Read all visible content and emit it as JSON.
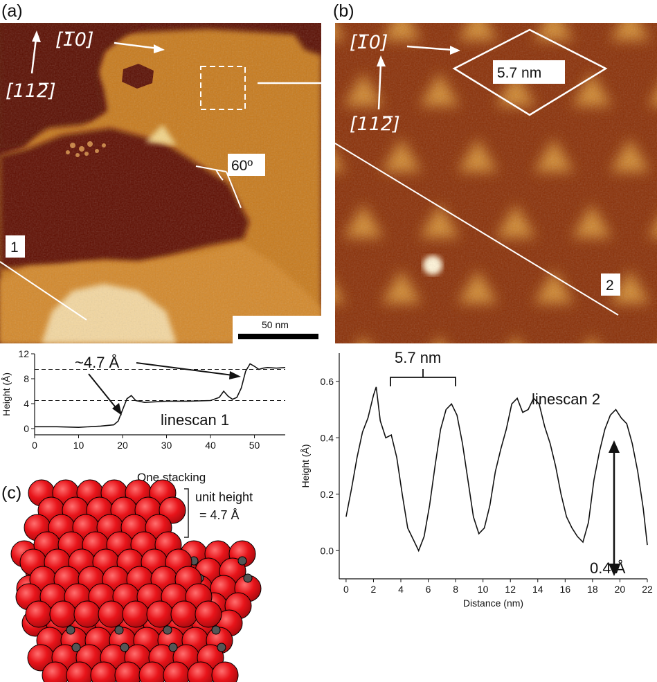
{
  "panels": {
    "a": "(a)",
    "b": "(b)",
    "c": "(c)"
  },
  "panel_a": {
    "dir_1": "[1̅0]",
    "dir_2": "[112̅]",
    "angle": "60º",
    "line_label": "1",
    "scale_bar": "50 nm"
  },
  "panel_b": {
    "dir_1": "[1̅0]",
    "dir_2": "[112̅]",
    "period": "5.7 nm",
    "line_label": "2"
  },
  "panel_c": {
    "title": "One stacking",
    "unit_height_1": "unit height",
    "unit_height_2": "= 4.7 Å"
  },
  "colors": {
    "red_atom": "#e8141a",
    "grey_atom": "#555555",
    "stm_dark": "#5a0e02",
    "stm_light": "#e0a04a"
  },
  "chart_data": [
    {
      "type": "line",
      "title": "linescan 1",
      "ylabel": "Height (Å)",
      "xlabel": "",
      "xlim": [
        0,
        57
      ],
      "ylim": [
        -1,
        12
      ],
      "xticks": [
        0,
        10,
        20,
        30,
        40,
        50
      ],
      "yticks": [
        0,
        4,
        8,
        12
      ],
      "annotation": "~4.7 Å",
      "reference_levels": [
        4.5,
        9.5
      ],
      "x": [
        0,
        5,
        10,
        15,
        18,
        19,
        20,
        21,
        22,
        23,
        25,
        30,
        35,
        40,
        42,
        43,
        44,
        45,
        46,
        47,
        48,
        49,
        50,
        51,
        52,
        53,
        55,
        57
      ],
      "y": [
        0.3,
        0.3,
        0.2,
        0.4,
        0.6,
        1.2,
        3.0,
        4.8,
        5.3,
        4.5,
        4.2,
        4.4,
        4.4,
        4.5,
        5.0,
        6.0,
        5.2,
        4.7,
        5.0,
        6.5,
        9.2,
        10.4,
        10.0,
        9.5,
        9.7,
        9.8,
        9.7,
        9.8
      ]
    },
    {
      "type": "line",
      "title": "linescan 2",
      "xlabel": "Distance (nm)",
      "ylabel": "Height (Å)",
      "xlim": [
        -0.5,
        22
      ],
      "ylim": [
        -0.1,
        0.7
      ],
      "xticks": [
        0,
        2,
        4,
        6,
        8,
        10,
        12,
        14,
        16,
        18,
        20,
        22
      ],
      "yticks": [
        0.0,
        0.2,
        0.4,
        0.6
      ],
      "period_label": "5.7 nm",
      "amplitude_label": "0.4 Å",
      "x": [
        0,
        0.4,
        0.8,
        1.2,
        1.6,
        2.0,
        2.2,
        2.5,
        2.9,
        3.3,
        3.7,
        4.1,
        4.5,
        5.0,
        5.3,
        5.7,
        6.1,
        6.5,
        6.9,
        7.3,
        7.7,
        8.1,
        8.5,
        8.9,
        9.3,
        9.7,
        10.1,
        10.5,
        10.9,
        11.3,
        11.7,
        12.1,
        12.5,
        12.9,
        13.3,
        13.7,
        14.1,
        14.5,
        14.9,
        15.3,
        15.7,
        16.1,
        16.5,
        16.9,
        17.3,
        17.7,
        18.1,
        18.5,
        18.9,
        19.3,
        19.7,
        20.1,
        20.5,
        20.9,
        21.3,
        21.7,
        22
      ],
      "y": [
        0.12,
        0.22,
        0.33,
        0.42,
        0.47,
        0.55,
        0.58,
        0.46,
        0.4,
        0.41,
        0.33,
        0.2,
        0.08,
        0.03,
        0.0,
        0.05,
        0.16,
        0.3,
        0.43,
        0.5,
        0.52,
        0.48,
        0.38,
        0.25,
        0.12,
        0.06,
        0.08,
        0.16,
        0.28,
        0.36,
        0.43,
        0.52,
        0.54,
        0.49,
        0.5,
        0.54,
        0.52,
        0.44,
        0.38,
        0.3,
        0.2,
        0.12,
        0.08,
        0.05,
        0.03,
        0.1,
        0.25,
        0.35,
        0.43,
        0.48,
        0.5,
        0.47,
        0.45,
        0.38,
        0.28,
        0.15,
        0.02
      ]
    }
  ]
}
